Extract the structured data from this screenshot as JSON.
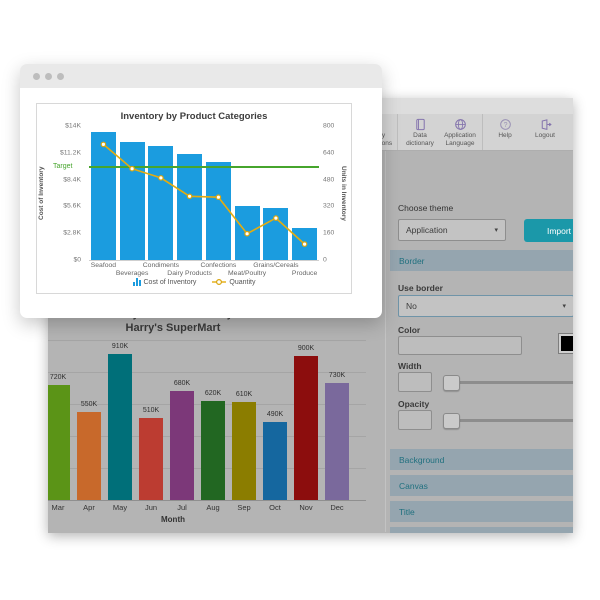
{
  "front_window": {
    "window_controls": "three-dots",
    "chart_ref": 0
  },
  "app_window": {
    "toolbar": {
      "groups": [
        {
          "items": [
            {
              "icon": "deploy-applications-icon",
              "label": "Deploy applications"
            }
          ]
        },
        {
          "items": [
            {
              "icon": "data-dictionary-icon",
              "label": "Data dictionary"
            },
            {
              "icon": "application-language-icon",
              "label": "Application Language"
            }
          ]
        },
        {
          "items": [
            {
              "icon": "help-icon",
              "label": "Help"
            },
            {
              "icon": "logout-icon",
              "label": "Logout"
            }
          ]
        }
      ]
    },
    "settings": {
      "choose_theme_label": "Choose theme",
      "theme_select": {
        "value": "Application",
        "caret": "▾"
      },
      "import_button": "Import",
      "border_section": {
        "header": "Border",
        "use_border_label": "Use border",
        "use_border_value": "No",
        "use_border_caret": "▾",
        "color_label": "Color",
        "color_input_value": "",
        "swatch_color": "#000000",
        "width_label": "Width",
        "width_input_value": "",
        "width_slider_position": 0,
        "opacity_label": "Opacity",
        "opacity_input_value": "",
        "opacity_slider_position": 0
      },
      "collapsed_sections": [
        "Background",
        "Canvas",
        "Title"
      ]
    }
  },
  "colors": {
    "accent_teal": "#1b98a9",
    "section_header_bg": "#95a5af",
    "section_header_text": "#20707f",
    "toolbar_icon_purple": "#8474ad",
    "inventory_bar_blue": "#1b9cdf",
    "quantity_line_gold": "#e3ac10",
    "target_green": "#46a52c",
    "app_window_gray": "#b4b4b4"
  },
  "chart_data": [
    {
      "type": "bar",
      "title": "Inventory by Product Categories",
      "categories": [
        "Seafood",
        "Beverages",
        "Condiments",
        "Dairy Products",
        "Confections",
        "Meat/Poultry",
        "Grains/Cereals",
        "Produce"
      ],
      "series": [
        {
          "name": "Cost of Inventory",
          "type": "bar",
          "axis": "left",
          "color": "#1b9cdf",
          "values": [
            13400,
            12300,
            11900,
            11100,
            10200,
            5600,
            5400,
            3400
          ]
        },
        {
          "name": "Quantity",
          "type": "line",
          "axis": "right",
          "color": "#e3ac10",
          "values": [
            690,
            545,
            490,
            380,
            375,
            157,
            250,
            95
          ]
        }
      ],
      "left_axis": {
        "title": "Cost of Inventory",
        "ticks": [
          "$14K",
          "$11.2K",
          "$8.4K",
          "$5.6K",
          "$2.8K",
          "$0"
        ],
        "range": [
          0,
          14000
        ]
      },
      "right_axis": {
        "title": "Units in Inventory",
        "ticks": [
          "800",
          "640",
          "480",
          "320",
          "160",
          "0"
        ],
        "range": [
          0,
          800
        ]
      },
      "target": {
        "label": "Target",
        "value": 9700,
        "color": "#46a52c"
      },
      "legend_position": "bottom",
      "grid": "off"
    },
    {
      "type": "bar",
      "title": "Monthly revenue for last year",
      "subtitle": "Harry's SuperMart",
      "xlabel": "Month",
      "categories": [
        "Mar",
        "Apr",
        "May",
        "Jun",
        "Jul",
        "Aug",
        "Sep",
        "Oct",
        "Nov",
        "Dec"
      ],
      "values": [
        720,
        550,
        910,
        510,
        680,
        620,
        610,
        490,
        900,
        730
      ],
      "value_labels": [
        "720K",
        "550K",
        "910K",
        "510K",
        "680K",
        "620K",
        "610K",
        "490K",
        "900K",
        "730K"
      ],
      "bar_colors": [
        "#5b9417",
        "#c8692b",
        "#006f79",
        "#bc3c31",
        "#7c3879",
        "#226722",
        "#8b7d00",
        "#15679f",
        "#8c0d0d",
        "#7a699c"
      ],
      "ylim": [
        0,
        1000
      ],
      "grid": "horizontal"
    }
  ]
}
